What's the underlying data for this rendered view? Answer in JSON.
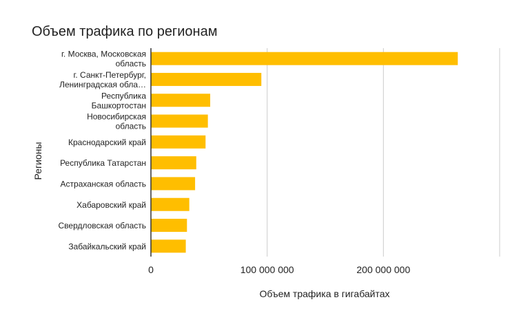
{
  "chart_data": {
    "type": "bar",
    "orientation": "horizontal",
    "title": "Объем трафика по регионам",
    "xlabel": "Объем трафика в гигабайтах",
    "ylabel": "Регионы",
    "xlim": [
      0,
      300000000
    ],
    "x_ticks": [
      0,
      100000000,
      200000000,
      300000000
    ],
    "x_tick_labels": [
      "0",
      "100 000 000",
      "200 000 000",
      ""
    ],
    "grid": true,
    "legend": "none",
    "bar_color": "#FFBE00",
    "categories": [
      [
        "г. Москва, Московская",
        "область"
      ],
      [
        "г. Санкт-Петербург,",
        "Ленинградская обла…"
      ],
      [
        "Республика",
        "Башкортостан"
      ],
      [
        "Новосибирская",
        "область"
      ],
      [
        "Краснодарский край"
      ],
      [
        "Республика Татарстан"
      ],
      [
        "Астраханская область"
      ],
      [
        "Хабаровский край"
      ],
      [
        "Свердловская область"
      ],
      [
        "Забайкальский край"
      ]
    ],
    "values": [
      264000000,
      95000000,
      51000000,
      49000000,
      47000000,
      39000000,
      38000000,
      33000000,
      31000000,
      30000000
    ]
  }
}
